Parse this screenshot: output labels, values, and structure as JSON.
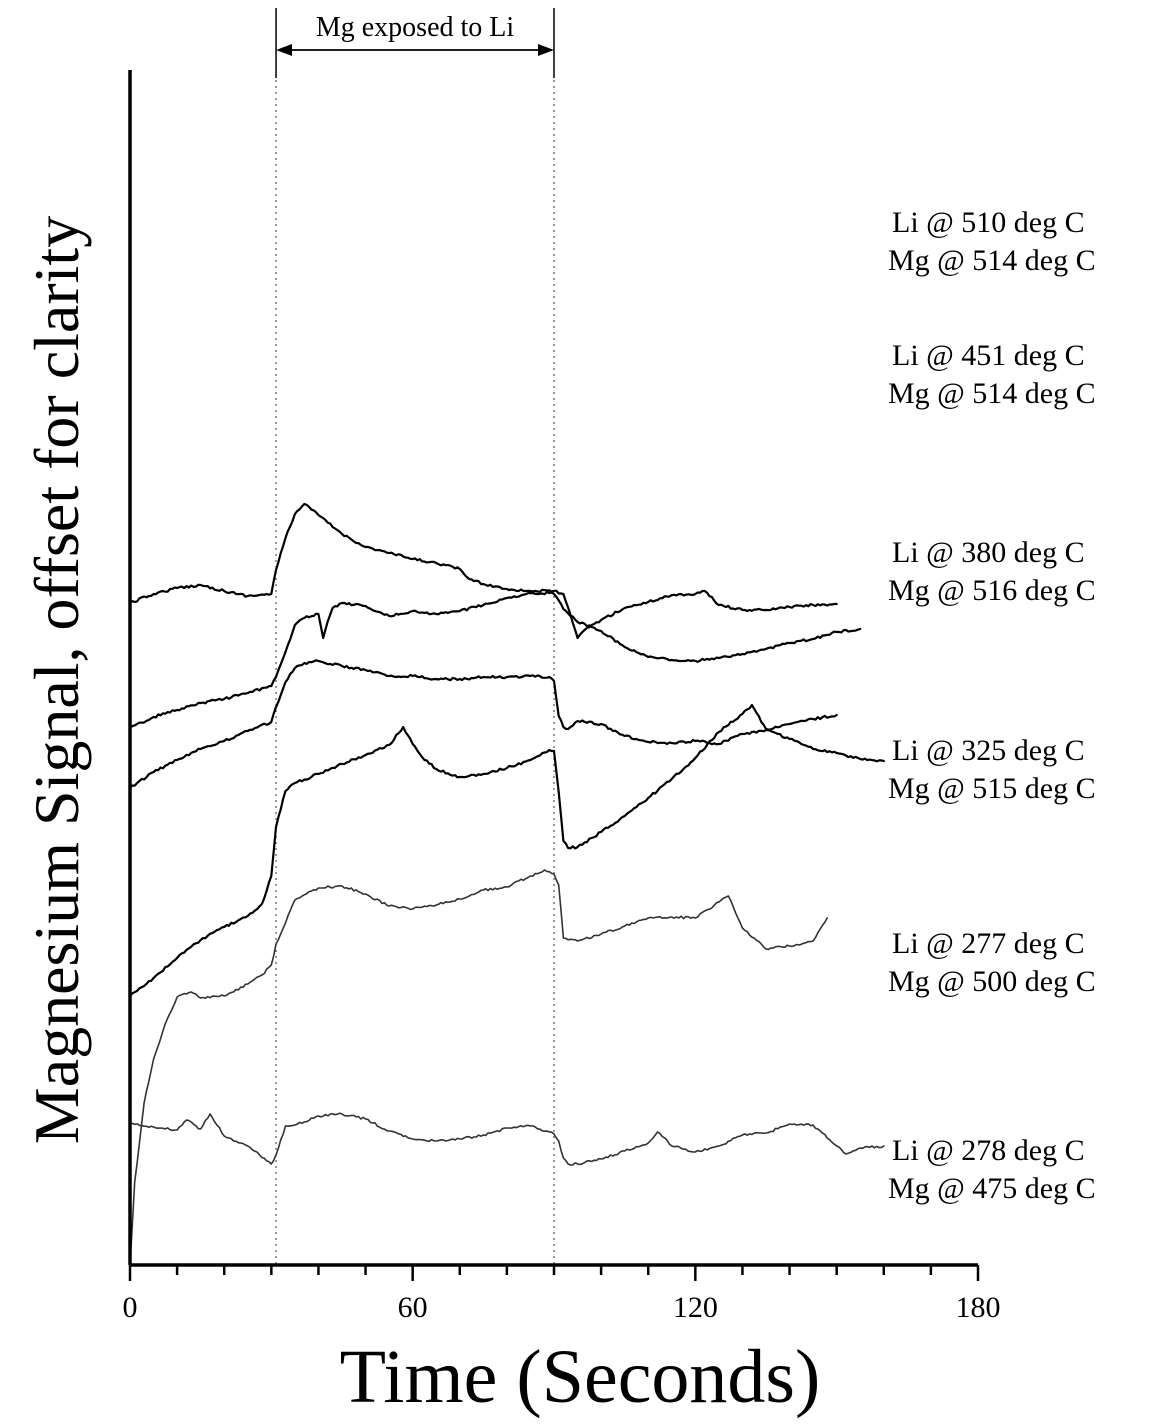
{
  "chart_data": {
    "type": "line",
    "ylabel": "Magnesium Signal, offset for clarity",
    "xlabel": "Time (Seconds)",
    "xlim": [
      0,
      180
    ],
    "xticks": [
      "0",
      "60",
      "120",
      "180"
    ],
    "minor_tick_step": 10,
    "grid": false,
    "annotation": {
      "text": "Mg exposed to Li",
      "x_start": 31,
      "x_end": 90
    },
    "series": [
      {
        "name_lines": [
          "Li @ 510 deg C",
          "Mg @ 514 deg C"
        ],
        "name": "Li @ 510 deg C / Mg @ 514 deg C",
        "x": [
          0,
          5,
          10,
          15,
          20,
          25,
          30,
          31,
          33,
          35,
          37,
          40,
          45,
          50,
          55,
          60,
          65,
          70,
          72,
          75,
          80,
          85,
          90,
          92,
          94,
          95,
          97,
          100,
          105,
          110,
          115,
          120,
          122,
          125,
          130,
          135,
          140,
          145,
          150
        ],
        "y": [
          19.7,
          20.6,
          21.2,
          21.5,
          20.9,
          20.4,
          20.6,
          23.0,
          26.2,
          28.6,
          29.6,
          28.5,
          26.6,
          25.3,
          24.7,
          24.1,
          23.7,
          23.1,
          22.1,
          21.6,
          21.1,
          20.9,
          20.9,
          20.6,
          17.7,
          16.2,
          17.2,
          18.0,
          19.2,
          19.8,
          20.5,
          20.6,
          20.9,
          19.5,
          19.0,
          19.0,
          19.3,
          19.5,
          19.6
        ]
      },
      {
        "name_lines": [
          "Li @ 451 deg C",
          "Mg @ 514 deg C"
        ],
        "name": "Li @ 451 deg C / Mg @ 514 deg C",
        "x": [
          0,
          5,
          10,
          15,
          20,
          25,
          30,
          31,
          33,
          35,
          37,
          40,
          41,
          42,
          43,
          45,
          50,
          55,
          60,
          65,
          70,
          75,
          80,
          85,
          89,
          90,
          92,
          95,
          100,
          105,
          110,
          115,
          120,
          125,
          130,
          135,
          140,
          145,
          150,
          155
        ],
        "y": [
          7.2,
          8.3,
          9.0,
          9.7,
          10.1,
          10.7,
          11.4,
          12.3,
          14.8,
          17.5,
          18.2,
          18.6,
          16.2,
          17.9,
          19.2,
          19.7,
          19.4,
          18.4,
          18.9,
          18.6,
          18.9,
          19.5,
          20.2,
          20.7,
          20.7,
          20.6,
          19.1,
          17.8,
          16.9,
          15.3,
          14.3,
          14.0,
          13.9,
          14.2,
          14.6,
          15.1,
          15.7,
          16.1,
          16.8,
          17.1
        ]
      },
      {
        "name_lines": [
          "Li @ 380 deg C",
          "Mg @ 516 deg C"
        ],
        "name": "Li @ 380 deg C / Mg @ 516 deg C",
        "x": [
          0,
          5,
          10,
          15,
          20,
          25,
          30,
          31,
          33,
          35,
          37,
          40,
          45,
          50,
          55,
          60,
          65,
          70,
          75,
          80,
          85,
          89,
          90,
          91,
          92,
          93,
          95,
          100,
          105,
          110,
          115,
          120,
          125,
          130,
          135,
          140,
          145,
          150
        ],
        "y": [
          1.2,
          2.8,
          4.0,
          5.1,
          5.9,
          6.9,
          7.8,
          9.3,
          11.8,
          13.2,
          13.7,
          13.9,
          13.4,
          13.0,
          12.4,
          12.4,
          12.1,
          12.1,
          12.3,
          12.3,
          12.4,
          12.3,
          11.9,
          8.4,
          7.3,
          7.1,
          7.9,
          7.6,
          6.4,
          5.8,
          5.7,
          5.9,
          5.6,
          6.6,
          7.0,
          7.6,
          8.1,
          8.5
        ]
      },
      {
        "name_lines": [
          "Li @ 325 deg C",
          "Mg @ 515 deg C"
        ],
        "name": "Li @ 325 deg C / Mg @ 515 deg C",
        "x": [
          0,
          5,
          10,
          15,
          20,
          25,
          28,
          30,
          31,
          33,
          35,
          40,
          45,
          50,
          55,
          58,
          60,
          62,
          65,
          70,
          75,
          80,
          85,
          89,
          90,
          91,
          92,
          93,
          95,
          100,
          105,
          110,
          115,
          120,
          125,
          130,
          132,
          135,
          140,
          145,
          150,
          155,
          160
        ],
        "y": [
          -19.6,
          -17.8,
          -15.8,
          -14.0,
          -12.7,
          -11.6,
          -10.4,
          -7.6,
          -2.7,
          0.9,
          1.7,
          2.6,
          3.6,
          4.5,
          5.5,
          7.3,
          5.6,
          4.3,
          3.1,
          2.3,
          2.6,
          3.2,
          4.0,
          5.0,
          4.9,
          0.8,
          -4.1,
          -4.8,
          -4.7,
          -3.2,
          -1.6,
          0.2,
          2.1,
          4.2,
          6.8,
          8.6,
          9.5,
          7.1,
          6.1,
          5.1,
          4.7,
          4.1,
          3.9
        ]
      },
      {
        "name_lines": [
          "Li @ 277 deg C",
          "Mg @ 500 deg C"
        ],
        "name": "Li @ 277 deg C / Mg @ 500 deg C",
        "x": [
          0,
          1,
          3,
          5,
          8,
          10,
          13,
          15,
          20,
          25,
          28,
          30,
          31,
          33,
          35,
          40,
          45,
          50,
          55,
          60,
          65,
          70,
          75,
          80,
          85,
          88,
          90,
          91,
          92,
          95,
          100,
          105,
          110,
          115,
          120,
          125,
          127,
          130,
          135,
          140,
          145,
          148
        ],
        "y": [
          -46.6,
          -38.2,
          -30.3,
          -25.9,
          -21.8,
          -19.7,
          -19.2,
          -19.8,
          -19.6,
          -18.4,
          -17.5,
          -16.5,
          -14.4,
          -12.3,
          -10.0,
          -8.8,
          -8.6,
          -9.4,
          -10.6,
          -10.9,
          -10.5,
          -9.9,
          -9.0,
          -8.7,
          -7.6,
          -7.0,
          -7.4,
          -8.5,
          -13.8,
          -14.1,
          -13.4,
          -12.6,
          -11.8,
          -11.7,
          -11.8,
          -10.2,
          -9.6,
          -12.8,
          -14.9,
          -14.6,
          -14.1,
          -11.8
        ]
      },
      {
        "name_lines": [
          "Li @ 278 deg C",
          "Mg @ 475 deg C"
        ],
        "name": "Li @ 278 deg C / Mg @ 475 deg C",
        "x": [
          0,
          5,
          10,
          12,
          15,
          17,
          20,
          25,
          30,
          31,
          33,
          35,
          40,
          45,
          50,
          55,
          60,
          65,
          70,
          75,
          80,
          85,
          90,
          91,
          92,
          93,
          95,
          100,
          105,
          110,
          112,
          115,
          120,
          125,
          130,
          135,
          140,
          145,
          150,
          152,
          155,
          160
        ],
        "y": [
          -32.4,
          -32.7,
          -33.0,
          -32.0,
          -32.9,
          -31.4,
          -33.6,
          -34.6,
          -36.4,
          -35.5,
          -32.6,
          -32.5,
          -31.6,
          -31.4,
          -31.9,
          -33.1,
          -33.9,
          -34.1,
          -33.9,
          -33.5,
          -32.8,
          -32.6,
          -33.4,
          -34.1,
          -35.8,
          -36.4,
          -36.4,
          -35.9,
          -35.1,
          -34.3,
          -33.2,
          -34.6,
          -35.2,
          -34.6,
          -33.5,
          -33.3,
          -32.4,
          -32.5,
          -34.6,
          -35.4,
          -34.8,
          -34.6
        ]
      }
    ]
  }
}
